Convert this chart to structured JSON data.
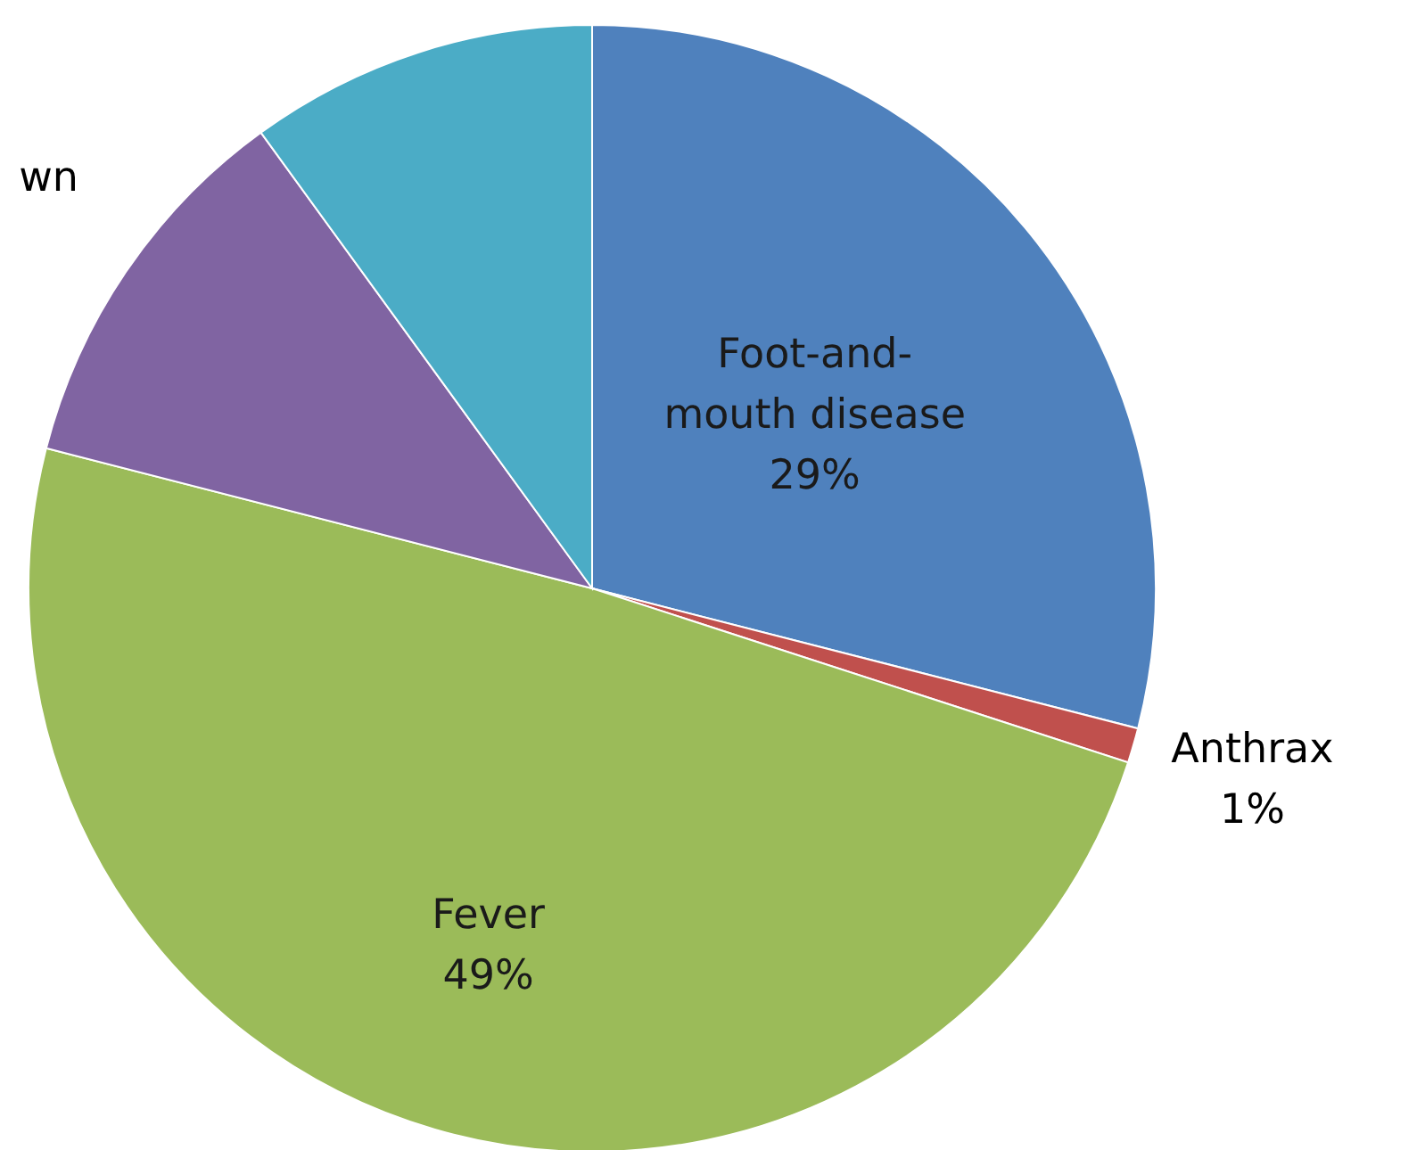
{
  "chart_data": {
    "type": "pie",
    "categories": [
      "Foot-and-mouth disease",
      "Anthrax",
      "Fever",
      null,
      null
    ],
    "values": [
      29,
      1,
      49,
      11,
      10
    ],
    "value_labels": [
      "29%",
      "1%",
      "49%",
      null,
      null
    ],
    "colors": [
      "#4f81bd",
      "#c0504d",
      "#9bbb59",
      "#8064a2",
      "#4bacc6"
    ],
    "annotations": [
      "wn"
    ]
  }
}
